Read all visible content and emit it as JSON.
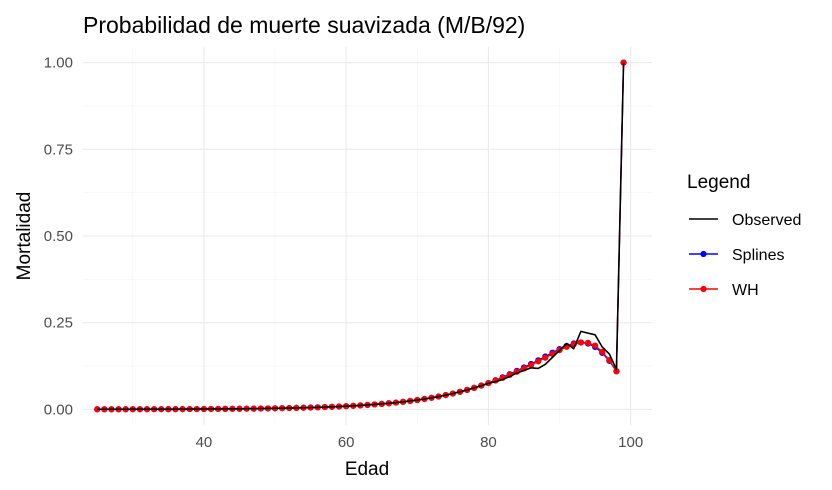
{
  "chart_data": {
    "type": "line",
    "title": "Probabilidad de muerte suavizada (M/B/92)",
    "xlabel": "Edad",
    "ylabel": "Mortalidad",
    "xlim": [
      23,
      103
    ],
    "ylim": [
      -0.045,
      1.045
    ],
    "x_ticks": [
      40,
      60,
      80,
      100
    ],
    "x_tick_labels": [
      "40",
      "60",
      "80",
      "100"
    ],
    "y_ticks": [
      0,
      0.25,
      0.5,
      0.75,
      1.0
    ],
    "y_tick_labels": [
      "0.00",
      "0.25",
      "0.50",
      "0.75",
      "1.00"
    ],
    "x_minor_ticks": [
      30,
      50,
      70,
      90
    ],
    "y_minor_ticks": [
      0.125,
      0.375,
      0.625,
      0.875
    ],
    "grid": true,
    "legend_title": "Legend",
    "legend_position": "right",
    "x": [
      25,
      26,
      27,
      28,
      29,
      30,
      31,
      32,
      33,
      34,
      35,
      36,
      37,
      38,
      39,
      40,
      41,
      42,
      43,
      44,
      45,
      46,
      47,
      48,
      49,
      50,
      51,
      52,
      53,
      54,
      55,
      56,
      57,
      58,
      59,
      60,
      61,
      62,
      63,
      64,
      65,
      66,
      67,
      68,
      69,
      70,
      71,
      72,
      73,
      74,
      75,
      76,
      77,
      78,
      79,
      80,
      81,
      82,
      83,
      84,
      85,
      86,
      87,
      88,
      89,
      90,
      91,
      92,
      93,
      94,
      95,
      96,
      97,
      98,
      99
    ],
    "series": [
      {
        "name": "Observed",
        "color": "#000000",
        "markers": false,
        "values": [
          0.0004,
          0.0004,
          0.0004,
          0.0004,
          0.0004,
          0.0005,
          0.0005,
          0.0005,
          0.0006,
          0.0006,
          0.0007,
          0.0007,
          0.0008,
          0.0009,
          0.001,
          0.0011,
          0.0012,
          0.0013,
          0.0015,
          0.0016,
          0.0018,
          0.002,
          0.0022,
          0.0025,
          0.0028,
          0.0031,
          0.0035,
          0.0039,
          0.0043,
          0.0048,
          0.0054,
          0.006,
          0.0067,
          0.0075,
          0.0083,
          0.0093,
          0.0103,
          0.0115,
          0.0128,
          0.0143,
          0.0159,
          0.0177,
          0.0197,
          0.0219,
          0.0243,
          0.027,
          0.03,
          0.0334,
          0.0371,
          0.0412,
          0.0457,
          0.0507,
          0.056,
          0.062,
          0.068,
          0.075,
          0.08,
          0.086,
          0.095,
          0.105,
          0.112,
          0.12,
          0.118,
          0.13,
          0.15,
          0.17,
          0.19,
          0.175,
          0.225,
          0.22,
          0.215,
          0.18,
          0.16,
          0.115,
          1.0
        ]
      },
      {
        "name": "Splines",
        "color": "#0000ff",
        "markers": true,
        "values": [
          0.0004,
          0.0004,
          0.0004,
          0.0004,
          0.0004,
          0.0005,
          0.0005,
          0.0005,
          0.0006,
          0.0006,
          0.0007,
          0.0007,
          0.0008,
          0.0009,
          0.001,
          0.0011,
          0.0012,
          0.0013,
          0.0015,
          0.0016,
          0.0018,
          0.002,
          0.0022,
          0.0025,
          0.0028,
          0.0031,
          0.0035,
          0.0039,
          0.0043,
          0.0048,
          0.0054,
          0.006,
          0.0067,
          0.0075,
          0.0083,
          0.0093,
          0.0103,
          0.0115,
          0.0128,
          0.0143,
          0.0159,
          0.0177,
          0.0197,
          0.0219,
          0.0243,
          0.027,
          0.03,
          0.0334,
          0.0371,
          0.0412,
          0.0457,
          0.0507,
          0.0562,
          0.0622,
          0.0688,
          0.076,
          0.084,
          0.0925,
          0.1015,
          0.111,
          0.121,
          0.131,
          0.1415,
          0.1525,
          0.1635,
          0.174,
          0.183,
          0.19,
          0.193,
          0.19,
          0.18,
          0.163,
          0.14,
          0.11,
          1.0
        ]
      },
      {
        "name": "WH",
        "color": "#ff0000",
        "markers": true,
        "values": [
          0.0004,
          0.0004,
          0.0004,
          0.0004,
          0.0004,
          0.0005,
          0.0005,
          0.0005,
          0.0006,
          0.0006,
          0.0007,
          0.0007,
          0.0008,
          0.0009,
          0.001,
          0.0011,
          0.0012,
          0.0013,
          0.0015,
          0.0016,
          0.0018,
          0.002,
          0.0022,
          0.0025,
          0.0028,
          0.0031,
          0.0035,
          0.0039,
          0.0043,
          0.0048,
          0.0054,
          0.006,
          0.0067,
          0.0075,
          0.0083,
          0.0093,
          0.0103,
          0.0115,
          0.0128,
          0.0143,
          0.0159,
          0.0177,
          0.0197,
          0.0219,
          0.0243,
          0.027,
          0.03,
          0.0334,
          0.0371,
          0.0412,
          0.0457,
          0.0507,
          0.056,
          0.062,
          0.0686,
          0.0756,
          0.0831,
          0.091,
          0.0995,
          0.1085,
          0.118,
          0.128,
          0.1385,
          0.149,
          0.16,
          0.171,
          0.1805,
          0.188,
          0.193,
          0.192,
          0.184,
          0.166,
          0.142,
          0.11,
          1.0
        ]
      }
    ]
  }
}
